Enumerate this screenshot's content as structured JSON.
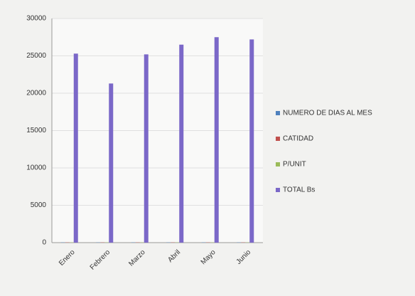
{
  "chart_data": {
    "type": "bar",
    "categories": [
      "Enero",
      "Febrero",
      "Marzo",
      "Abril",
      "Mayo",
      "Junio"
    ],
    "series": [
      {
        "name": "NUMERO DE DIAS AL MES",
        "color": "#4f81bd",
        "values": [
          31,
          28,
          31,
          30,
          31,
          30
        ]
      },
      {
        "name": "CATIDAD",
        "color": "#c0504d",
        "values": [
          30,
          30,
          30,
          30,
          30,
          30
        ]
      },
      {
        "name": "P/UNIT",
        "color": "#9bbb59",
        "values": [
          30,
          30,
          30,
          30,
          30,
          30
        ]
      },
      {
        "name": "TOTAL Bs",
        "color": "#7b68c8",
        "values": [
          25300,
          21300,
          25200,
          26500,
          27500,
          27200
        ]
      }
    ],
    "ylim": [
      0,
      30000
    ],
    "yticks": [
      0,
      5000,
      10000,
      15000,
      20000,
      25000,
      30000
    ],
    "grid": true,
    "legend": "right"
  }
}
